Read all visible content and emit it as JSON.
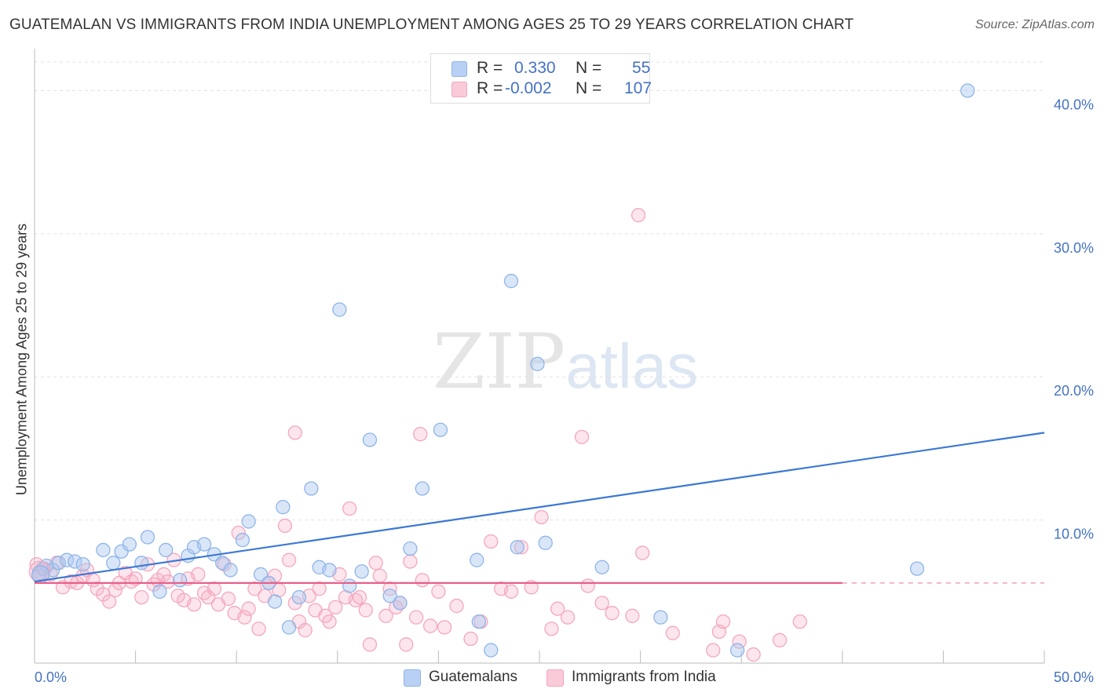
{
  "chart_data": {
    "type": "scatter",
    "title": "GUATEMALAN VS IMMIGRANTS FROM INDIA UNEMPLOYMENT AMONG AGES 25 TO 29 YEARS CORRELATION CHART",
    "source": "Source: ZipAtlas.com",
    "ylabel": "Unemployment Among Ages 25 to 29 years",
    "xlim": [
      0,
      50
    ],
    "ylim": [
      0,
      42
    ],
    "x_tick_labels": [
      "0.0%",
      "50.0%"
    ],
    "y_ticks": [
      10,
      20,
      30,
      40
    ],
    "y_tick_labels": [
      "10.0%",
      "20.0%",
      "30.0%",
      "40.0%"
    ],
    "watermark": {
      "zip": "ZIP",
      "atlas": "atlas"
    },
    "legend": {
      "rows": [
        {
          "r_label": "R =",
          "r_value": "0.330",
          "n_label": "N =",
          "n_value": "55"
        },
        {
          "r_label": "R =",
          "r_value": "-0.002",
          "n_label": "N =",
          "n_value": "107"
        }
      ]
    },
    "series": [
      {
        "name": "Guatemalans",
        "color": "#8fb5e8",
        "line_color": "#3b78d4",
        "trend": {
          "x0": 0,
          "y0": 5.7,
          "x1": 50,
          "y1": 16.1
        },
        "points": [
          [
            0.2,
            6.1
          ],
          [
            0.4,
            6.6
          ],
          [
            0.6,
            6.8
          ],
          [
            0.9,
            6.5
          ],
          [
            1.2,
            7.0
          ],
          [
            1.6,
            7.2
          ],
          [
            2.0,
            7.1
          ],
          [
            2.4,
            6.9
          ],
          [
            3.4,
            7.9
          ],
          [
            3.9,
            7.0
          ],
          [
            4.3,
            7.8
          ],
          [
            4.7,
            8.3
          ],
          [
            5.3,
            7.0
          ],
          [
            5.6,
            8.8
          ],
          [
            6.2,
            5.0
          ],
          [
            6.5,
            7.9
          ],
          [
            7.2,
            5.8
          ],
          [
            7.6,
            7.5
          ],
          [
            7.9,
            8.1
          ],
          [
            8.4,
            8.3
          ],
          [
            8.9,
            7.6
          ],
          [
            9.3,
            7.0
          ],
          [
            9.7,
            6.5
          ],
          [
            10.3,
            8.6
          ],
          [
            10.6,
            9.9
          ],
          [
            11.2,
            6.2
          ],
          [
            11.6,
            5.6
          ],
          [
            11.9,
            4.3
          ],
          [
            12.3,
            10.9
          ],
          [
            12.6,
            2.5
          ],
          [
            13.1,
            4.6
          ],
          [
            13.7,
            12.2
          ],
          [
            14.1,
            6.7
          ],
          [
            14.6,
            6.5
          ],
          [
            15.1,
            24.7
          ],
          [
            15.6,
            5.4
          ],
          [
            16.2,
            6.4
          ],
          [
            16.6,
            15.6
          ],
          [
            17.6,
            4.7
          ],
          [
            18.1,
            4.2
          ],
          [
            18.6,
            8.0
          ],
          [
            19.2,
            12.2
          ],
          [
            20.1,
            16.3
          ],
          [
            21.9,
            7.2
          ],
          [
            22.0,
            2.9
          ],
          [
            22.6,
            0.9
          ],
          [
            23.6,
            26.7
          ],
          [
            23.9,
            8.1
          ],
          [
            24.9,
            20.9
          ],
          [
            25.3,
            8.4
          ],
          [
            28.1,
            6.7
          ],
          [
            31.0,
            3.2
          ],
          [
            34.8,
            0.9
          ],
          [
            43.7,
            6.6
          ],
          [
            46.2,
            40.0
          ]
        ]
      },
      {
        "name": "Immigrants from India",
        "color": "#f4a7bf",
        "line_color": "#e8608a",
        "trend": {
          "x0": 0,
          "y0": 5.6,
          "x1": 40,
          "y1": 5.6
        },
        "trend_dashed_to": 50,
        "points": [
          [
            0.1,
            6.9
          ],
          [
            0.3,
            6.3
          ],
          [
            0.5,
            6.6
          ],
          [
            0.8,
            6.2
          ],
          [
            1.1,
            7.0
          ],
          [
            1.4,
            5.3
          ],
          [
            1.8,
            5.7
          ],
          [
            2.1,
            5.6
          ],
          [
            2.4,
            6.1
          ],
          [
            2.6,
            6.5
          ],
          [
            2.9,
            5.8
          ],
          [
            3.1,
            5.2
          ],
          [
            3.4,
            4.8
          ],
          [
            3.7,
            4.3
          ],
          [
            4.0,
            5.1
          ],
          [
            4.2,
            5.6
          ],
          [
            4.5,
            6.3
          ],
          [
            4.8,
            5.7
          ],
          [
            5.0,
            5.9
          ],
          [
            5.3,
            4.6
          ],
          [
            5.6,
            6.9
          ],
          [
            5.9,
            5.5
          ],
          [
            6.1,
            5.8
          ],
          [
            6.4,
            6.2
          ],
          [
            6.6,
            5.7
          ],
          [
            6.9,
            7.2
          ],
          [
            7.1,
            4.7
          ],
          [
            7.4,
            4.4
          ],
          [
            7.6,
            5.9
          ],
          [
            7.9,
            4.1
          ],
          [
            8.1,
            6.2
          ],
          [
            8.4,
            4.9
          ],
          [
            8.6,
            4.6
          ],
          [
            8.9,
            5.2
          ],
          [
            9.1,
            4.1
          ],
          [
            9.4,
            6.9
          ],
          [
            9.6,
            4.5
          ],
          [
            9.9,
            3.5
          ],
          [
            10.1,
            9.1
          ],
          [
            10.4,
            3.2
          ],
          [
            10.6,
            3.8
          ],
          [
            10.9,
            5.2
          ],
          [
            11.1,
            2.4
          ],
          [
            11.4,
            4.7
          ],
          [
            11.6,
            5.6
          ],
          [
            11.9,
            6.1
          ],
          [
            12.1,
            5.1
          ],
          [
            12.4,
            9.6
          ],
          [
            12.6,
            7.2
          ],
          [
            12.9,
            4.2
          ],
          [
            13.1,
            2.9
          ],
          [
            13.4,
            2.3
          ],
          [
            13.6,
            4.7
          ],
          [
            13.9,
            3.7
          ],
          [
            14.1,
            5.2
          ],
          [
            14.4,
            3.3
          ],
          [
            14.6,
            2.9
          ],
          [
            14.9,
            3.9
          ],
          [
            15.1,
            6.2
          ],
          [
            15.4,
            4.6
          ],
          [
            15.6,
            10.8
          ],
          [
            15.9,
            4.4
          ],
          [
            16.1,
            4.6
          ],
          [
            16.4,
            3.7
          ],
          [
            16.6,
            1.3
          ],
          [
            16.9,
            7.0
          ],
          [
            17.1,
            6.1
          ],
          [
            17.4,
            3.3
          ],
          [
            17.6,
            5.2
          ],
          [
            17.9,
            3.9
          ],
          [
            18.1,
            4.2
          ],
          [
            18.4,
            1.3
          ],
          [
            18.6,
            7.1
          ],
          [
            18.9,
            3.2
          ],
          [
            19.2,
            5.8
          ],
          [
            12.9,
            16.1
          ],
          [
            19.1,
            16.0
          ],
          [
            19.6,
            2.6
          ],
          [
            20.0,
            5.0
          ],
          [
            20.3,
            2.5
          ],
          [
            20.9,
            4.0
          ],
          [
            21.6,
            1.7
          ],
          [
            22.1,
            2.9
          ],
          [
            22.6,
            8.5
          ],
          [
            23.1,
            5.2
          ],
          [
            23.6,
            5.0
          ],
          [
            24.1,
            8.1
          ],
          [
            24.6,
            5.3
          ],
          [
            25.1,
            10.2
          ],
          [
            25.6,
            2.4
          ],
          [
            27.1,
            15.8
          ],
          [
            28.1,
            4.2
          ],
          [
            29.6,
            3.3
          ],
          [
            29.9,
            31.3
          ],
          [
            30.1,
            7.7
          ],
          [
            33.6,
            0.9
          ],
          [
            33.9,
            2.2
          ],
          [
            34.1,
            2.9
          ],
          [
            34.9,
            1.5
          ],
          [
            35.6,
            0.6
          ],
          [
            36.9,
            1.6
          ],
          [
            37.9,
            2.9
          ],
          [
            25.9,
            3.8
          ],
          [
            26.4,
            3.2
          ],
          [
            27.4,
            5.4
          ],
          [
            28.6,
            3.5
          ],
          [
            31.6,
            2.1
          ]
        ]
      }
    ]
  }
}
